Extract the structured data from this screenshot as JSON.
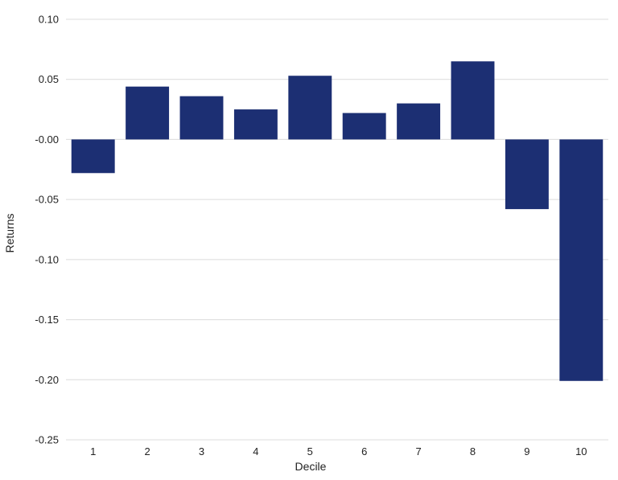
{
  "chart_data": {
    "type": "bar",
    "categories": [
      "1",
      "2",
      "3",
      "4",
      "5",
      "6",
      "7",
      "8",
      "9",
      "10"
    ],
    "values": [
      -0.028,
      0.044,
      0.036,
      0.025,
      0.053,
      0.022,
      0.03,
      0.065,
      -0.058,
      -0.201
    ],
    "xlabel": "Decile",
    "ylabel": "Returns",
    "ylim": [
      -0.25,
      0.1
    ],
    "yticks": [
      0.1,
      0.05,
      0.0,
      -0.05,
      -0.1,
      -0.15,
      -0.2,
      -0.25
    ],
    "ytick_labels": [
      "0.10",
      "0.05",
      "-0.00",
      "-0.05",
      "-0.10",
      "-0.15",
      "-0.20",
      "-0.25"
    ],
    "grid": "horizontal",
    "bar_color": "#1c2f73"
  }
}
